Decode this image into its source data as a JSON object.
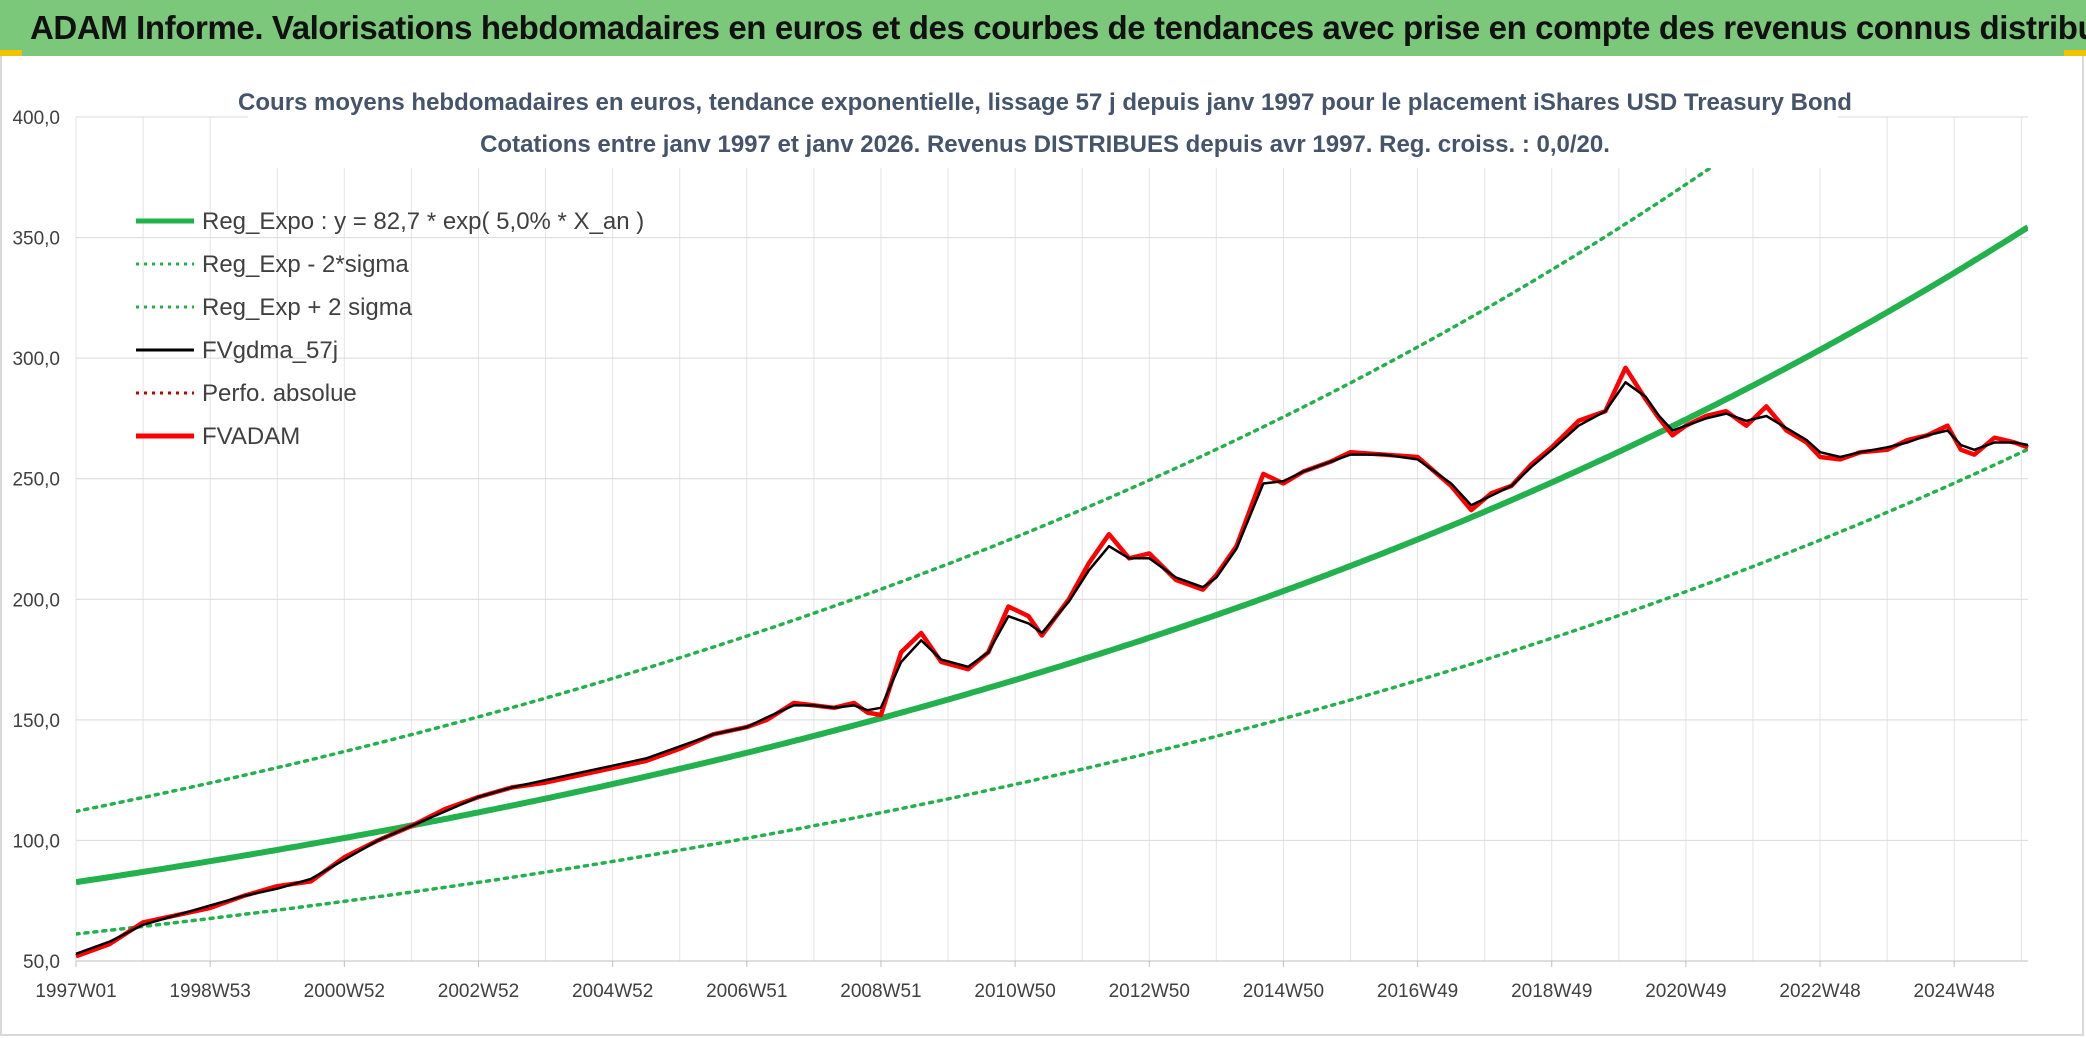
{
  "banner": {
    "title": "ADAM Informe. Valorisations hebdomadaires en euros et des courbes de tendances avec prise en compte des revenus connus distribués",
    "background": "#7bc87b"
  },
  "chart_data": {
    "type": "line",
    "title_line1": "Cours moyens hebdomadaires en euros, tendance exponentielle, lissage 57 j depuis janv 1997 pour le placement iShares USD Treasury Bond",
    "title_line2": "Cotations entre janv 1997 et janv 2026. Revenus DISTRIBUES depuis avr 1997. Reg. croiss. : 0,0/20.",
    "ylim": [
      50,
      400
    ],
    "y_ticks": [
      "400,0",
      "350,0",
      "300,0",
      "250,0",
      "200,0",
      "150,0",
      "100,0",
      "50,0"
    ],
    "y_tick_values": [
      400,
      350,
      300,
      250,
      200,
      150,
      100,
      50
    ],
    "xlim": [
      1997.0,
      2026.1
    ],
    "x_tick_labels": [
      "1997W01",
      "1998W53",
      "2000W52",
      "2002W52",
      "2004W52",
      "2006W51",
      "2008W51",
      "2010W50",
      "2012W50",
      "2014W50",
      "2016W49",
      "2018W49",
      "2020W49",
      "2022W48",
      "2024W48"
    ],
    "x_tick_positions": [
      1997.0,
      1999.0,
      2001.0,
      2003.0,
      2005.0,
      2007.0,
      2009.0,
      2011.0,
      2013.0,
      2015.0,
      2017.0,
      2019.0,
      2021.0,
      2023.0,
      2025.0
    ],
    "legend": [
      {
        "label": "Reg_Expo : y = 82,7 * exp( 5,0% *  X_an )",
        "color": "#22b14c",
        "style": "solid-thick"
      },
      {
        "label": "Reg_Exp - 2*sigma",
        "color": "#22b14c",
        "style": "dotted"
      },
      {
        "label": "Reg_Exp + 2 sigma",
        "color": "#22b14c",
        "style": "dotted"
      },
      {
        "label": "FVgdma_57j",
        "color": "#000000",
        "style": "solid"
      },
      {
        "label": "Perfo. absolue",
        "color": "#c00000",
        "style": "dotted"
      },
      {
        "label": "FVADAM",
        "color": "#ff0000",
        "style": "solid-thick"
      }
    ],
    "regression": {
      "a": 82.7,
      "rate": 0.05,
      "upper_factor": 1.355,
      "lower_factor": 0.74,
      "color": "#22b14c"
    },
    "series": [
      {
        "name": "FVADAM",
        "color": "#ff0000",
        "x": [
          1997.0,
          1997.5,
          1998.0,
          1998.5,
          1999.0,
          1999.5,
          2000.0,
          2000.5,
          2001.0,
          2001.5,
          2002.0,
          2002.5,
          2003.0,
          2003.5,
          2004.0,
          2004.5,
          2005.0,
          2005.5,
          2006.0,
          2006.5,
          2007.0,
          2007.3,
          2007.7,
          2008.0,
          2008.3,
          2008.6,
          2008.8,
          2009.0,
          2009.3,
          2009.6,
          2009.9,
          2010.3,
          2010.6,
          2010.9,
          2011.2,
          2011.4,
          2011.8,
          2012.1,
          2012.4,
          2012.7,
          2013.0,
          2013.4,
          2013.8,
          2014.0,
          2014.3,
          2014.7,
          2015.0,
          2015.3,
          2015.7,
          2016.0,
          2016.5,
          2017.0,
          2017.5,
          2017.8,
          2018.1,
          2018.4,
          2018.7,
          2019.0,
          2019.4,
          2019.8,
          2020.1,
          2020.4,
          2020.6,
          2020.8,
          2021.0,
          2021.3,
          2021.6,
          2021.9,
          2022.2,
          2022.5,
          2022.8,
          2023.0,
          2023.3,
          2023.6,
          2024.0,
          2024.3,
          2024.6,
          2024.9,
          2025.1,
          2025.3,
          2025.6,
          2025.9,
          2026.1
        ],
        "values": [
          52,
          57,
          66,
          69,
          72,
          77,
          81,
          83,
          93,
          100,
          106,
          113,
          118,
          122,
          124,
          127,
          130,
          133,
          138,
          144,
          147,
          150,
          157,
          156,
          155,
          157,
          153,
          152,
          178,
          186,
          174,
          171,
          178,
          197,
          193,
          185,
          200,
          215,
          227,
          217,
          219,
          208,
          204,
          210,
          222,
          252,
          248,
          253,
          257,
          261,
          260,
          259,
          247,
          237,
          244,
          247,
          256,
          263,
          274,
          278,
          296,
          283,
          275,
          268,
          272,
          276,
          278,
          272,
          280,
          270,
          265,
          259,
          258,
          261,
          262,
          266,
          268,
          272,
          262,
          260,
          267,
          265,
          263
        ]
      },
      {
        "name": "FVgdma_57j",
        "color": "#000000",
        "x": [
          1997.0,
          1997.5,
          1998.0,
          1998.5,
          1999.0,
          1999.5,
          2000.0,
          2000.5,
          2001.0,
          2001.5,
          2002.0,
          2002.5,
          2003.0,
          2003.5,
          2004.0,
          2004.5,
          2005.0,
          2005.5,
          2006.0,
          2006.5,
          2007.0,
          2007.3,
          2007.7,
          2008.0,
          2008.3,
          2008.6,
          2008.8,
          2009.0,
          2009.3,
          2009.6,
          2009.9,
          2010.3,
          2010.6,
          2010.9,
          2011.2,
          2011.4,
          2011.8,
          2012.1,
          2012.4,
          2012.7,
          2013.0,
          2013.4,
          2013.8,
          2014.0,
          2014.3,
          2014.7,
          2015.0,
          2015.3,
          2015.7,
          2016.0,
          2016.5,
          2017.0,
          2017.5,
          2017.8,
          2018.1,
          2018.4,
          2018.7,
          2019.0,
          2019.4,
          2019.8,
          2020.1,
          2020.4,
          2020.6,
          2020.8,
          2021.0,
          2021.3,
          2021.6,
          2021.9,
          2022.2,
          2022.5,
          2022.8,
          2023.0,
          2023.3,
          2023.6,
          2024.0,
          2024.3,
          2024.6,
          2024.9,
          2025.1,
          2025.3,
          2025.6,
          2025.9,
          2026.1
        ],
        "values": [
          53,
          58,
          65,
          69,
          73,
          77,
          80,
          84,
          92,
          100,
          106,
          112,
          118,
          122,
          125,
          128,
          131,
          134,
          139,
          144,
          147,
          151,
          156,
          156,
          155,
          156,
          154,
          155,
          174,
          183,
          175,
          172,
          178,
          193,
          190,
          186,
          199,
          212,
          222,
          217,
          217,
          209,
          205,
          209,
          221,
          248,
          249,
          253,
          257,
          260,
          260,
          258,
          248,
          239,
          243,
          247,
          255,
          262,
          272,
          278,
          290,
          284,
          276,
          270,
          272,
          275,
          277,
          274,
          276,
          271,
          266,
          261,
          259,
          261,
          263,
          265,
          268,
          270,
          264,
          262,
          265,
          265,
          264
        ]
      }
    ]
  }
}
